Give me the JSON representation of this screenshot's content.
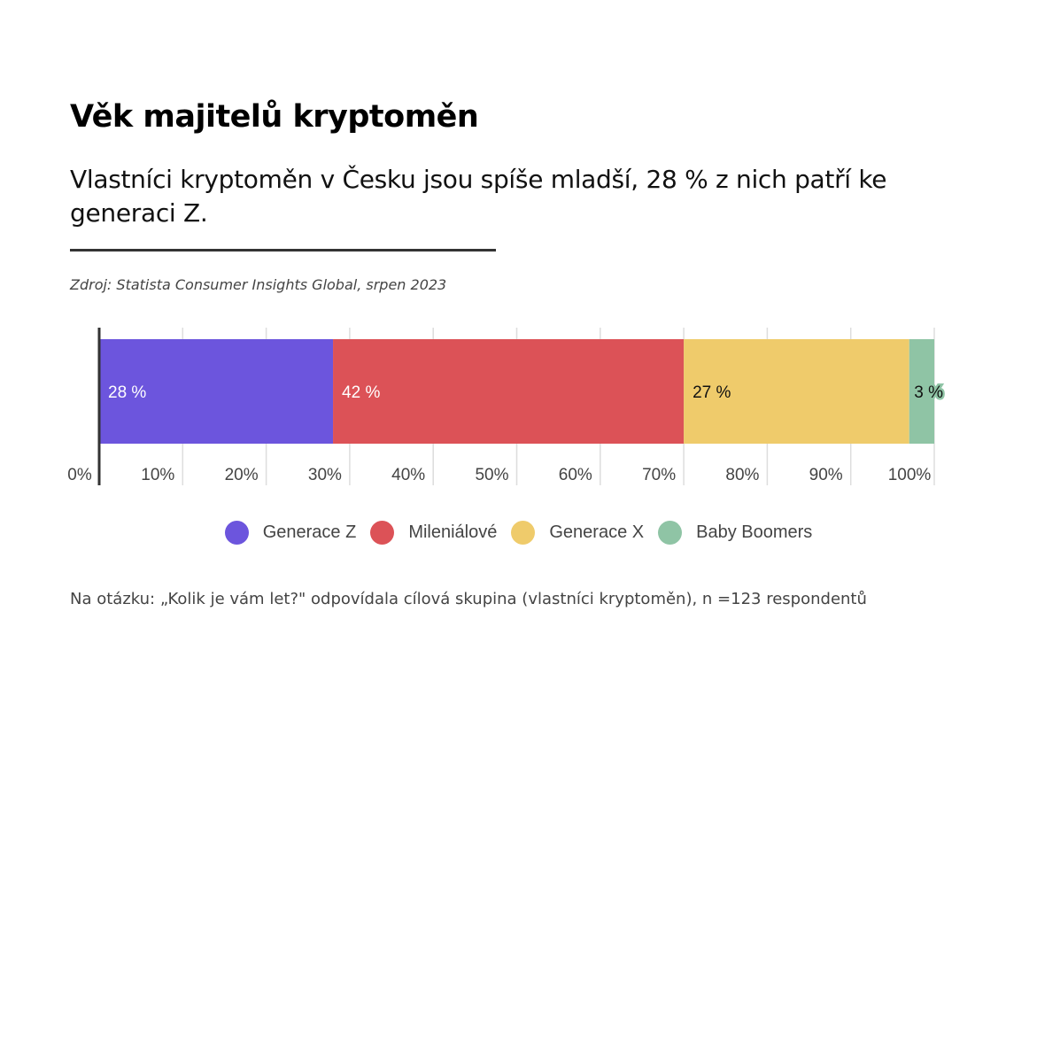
{
  "header": {
    "title": "Věk majitelů kryptoměn",
    "subtitle": "Vlastníci kryptoměn v Česku jsou spíše mladší, 28 % z nich patří ke generaci Z.",
    "source": "Zdroj: Statista Consumer Insights Global, srpen 2023"
  },
  "note": "Na otázku: „Kolik je vám let?\" odpovídala cílová skupina (vlastníci kryptoměn), n =123 respondentů",
  "chart_data": {
    "type": "bar",
    "orientation": "horizontal-stacked",
    "xlim": [
      0,
      100
    ],
    "x_ticks": [
      "0%",
      "10%",
      "20%",
      "30%",
      "40%",
      "50%",
      "60%",
      "70%",
      "80%",
      "90%",
      "100%"
    ],
    "grid": true,
    "legend_position": "bottom",
    "series": [
      {
        "name": "Generace Z",
        "value": 28,
        "label": "28 %",
        "color": "#6c55dd",
        "label_color": "#ffffff"
      },
      {
        "name": "Mileniálové",
        "value": 42,
        "label": "42 %",
        "color": "#dc5257",
        "label_color": "#ffffff"
      },
      {
        "name": "Generace X",
        "value": 27,
        "label": "27 %",
        "color": "#efcb6b",
        "label_color": "#111111"
      },
      {
        "name": "Baby Boomers",
        "value": 3,
        "label": "3 %",
        "color": "#8fc4a5",
        "label_color": "#111111"
      }
    ]
  }
}
